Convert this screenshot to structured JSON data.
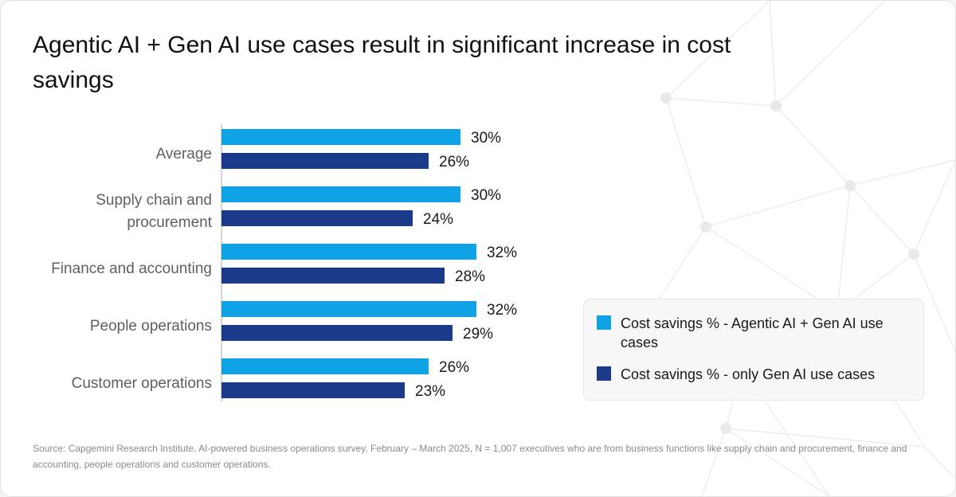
{
  "title": "Agentic AI + Gen AI use cases result in significant increase in cost savings",
  "source": "Source: Capgemini Research Institute, AI-powered business operations survey, February – March 2025, N = 1,007 executives who are from business functions like supply chain and procurement, finance and accounting, people operations and customer operations.",
  "colors": {
    "agentic": "#0fa3e6",
    "gen_ai": "#1c3a8a",
    "axis": "#c8c8c8",
    "network": "#e6e6e6"
  },
  "chart_data": {
    "type": "bar",
    "orientation": "horizontal",
    "categories": [
      [
        "Average"
      ],
      [
        "Supply chain and",
        "procurement"
      ],
      [
        "Finance and accounting"
      ],
      [
        "People operations"
      ],
      [
        "Customer operations"
      ]
    ],
    "series": [
      {
        "name": "Cost savings % - Agentic AI + Gen AI use cases",
        "values": [
          30,
          30,
          32,
          32,
          26
        ],
        "labels": [
          "30%",
          "30%",
          "32%",
          "32%",
          "26%"
        ]
      },
      {
        "name": "Cost savings % - only Gen AI use cases",
        "values": [
          26,
          24,
          28,
          29,
          23
        ],
        "labels": [
          "26%",
          "24%",
          "28%",
          "29%",
          "23%"
        ]
      }
    ],
    "xlim": [
      0,
      32
    ],
    "legend_position": "right",
    "grid": false
  }
}
